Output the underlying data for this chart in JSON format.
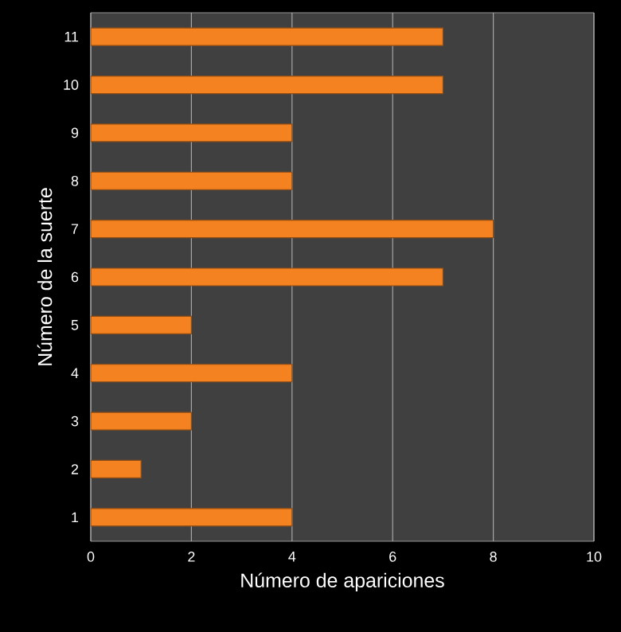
{
  "chart_data": {
    "type": "bar",
    "orientation": "horizontal",
    "xlabel": "Número de apariciones",
    "ylabel": "Número de la suerte",
    "categories": [
      "11",
      "10",
      "9",
      "8",
      "7",
      "6",
      "5",
      "4",
      "3",
      "2",
      "1"
    ],
    "values": [
      7,
      7,
      4,
      4,
      8,
      7,
      2,
      4,
      2,
      1,
      4
    ],
    "color": "#f58220",
    "xlim": [
      0,
      10
    ],
    "xticks": [
      0,
      2,
      4,
      6,
      8,
      10
    ],
    "grid": "x"
  }
}
